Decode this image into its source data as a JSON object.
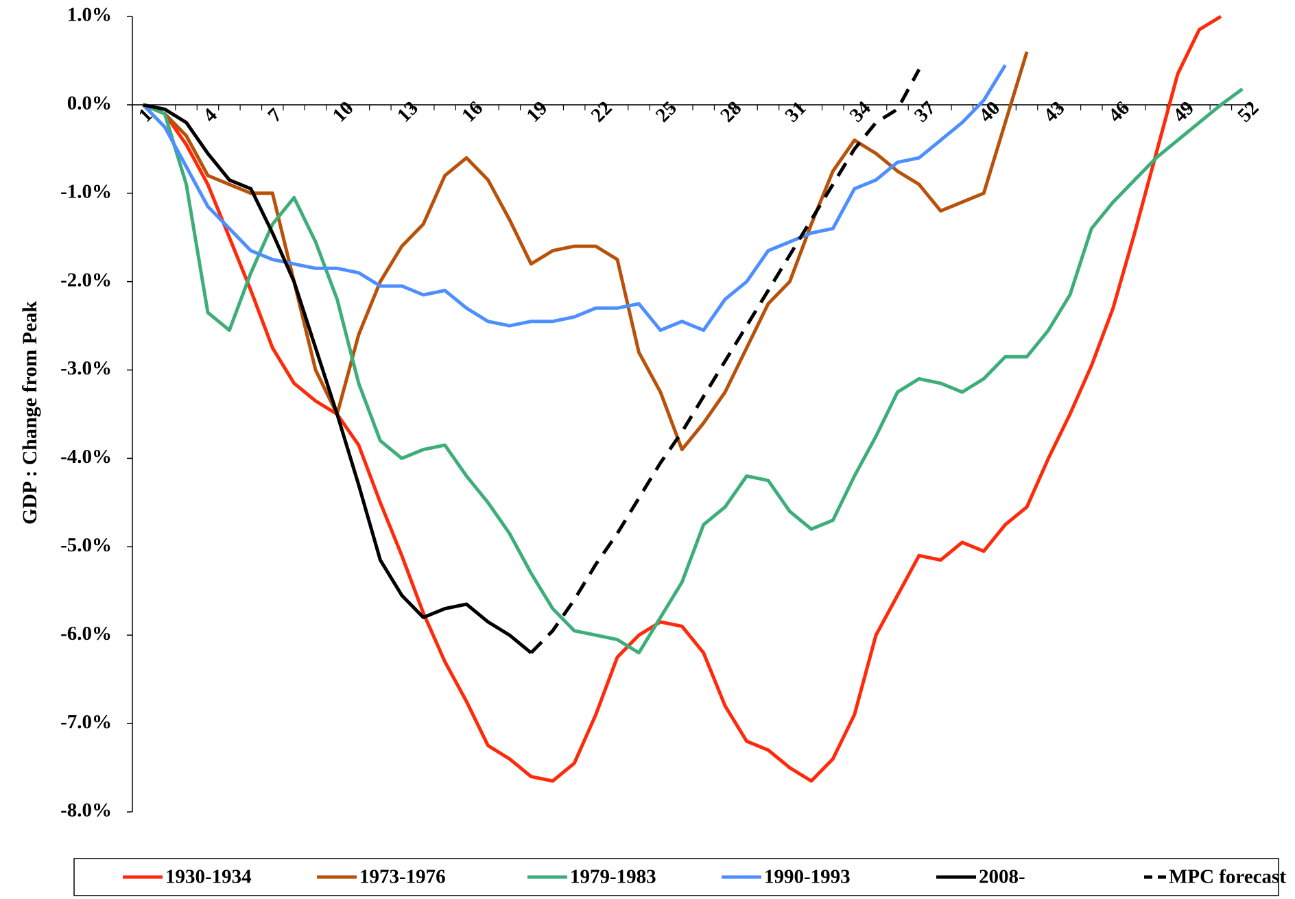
{
  "chart_data": {
    "type": "line",
    "y_label": "GDP : Change from Peak",
    "x": [
      1,
      2,
      3,
      4,
      5,
      6,
      7,
      8,
      9,
      10,
      11,
      12,
      13,
      14,
      15,
      16,
      17,
      18,
      19,
      20,
      21,
      22,
      23,
      24,
      25,
      26,
      27,
      28,
      29,
      30,
      31,
      32,
      33,
      34,
      35,
      36,
      37,
      38,
      39,
      40,
      41,
      42,
      43,
      44,
      45,
      46,
      47,
      48,
      49,
      50,
      51,
      52
    ],
    "xlim": [
      0.5,
      52.5
    ],
    "xticks": [
      1,
      4,
      7,
      10,
      13,
      16,
      19,
      22,
      25,
      28,
      31,
      34,
      37,
      40,
      43,
      46,
      49,
      52
    ],
    "ylim": [
      -8,
      1
    ],
    "yticks": [
      {
        "value": -8,
        "label": "-8.0%"
      },
      {
        "value": -7,
        "label": "-7.0%"
      },
      {
        "value": -6,
        "label": "-6.0%"
      },
      {
        "value": -5,
        "label": "-5.0%"
      },
      {
        "value": -4,
        "label": "-4.0%"
      },
      {
        "value": -3,
        "label": "-3.0%"
      },
      {
        "value": -2,
        "label": "-2.0%"
      },
      {
        "value": -1,
        "label": "-1.0%"
      },
      {
        "value": 0,
        "label": "0.0%"
      },
      {
        "value": 1,
        "label": "1.0%"
      }
    ],
    "legend": "bottom",
    "series": [
      {
        "name": "1930-1934",
        "color": "#ff2a0a",
        "values": [
          0,
          -0.1,
          -0.45,
          -0.9,
          -1.5,
          -2.1,
          -2.75,
          -3.15,
          -3.35,
          -3.5,
          -3.85,
          -4.5,
          -5.1,
          -5.75,
          -6.3,
          -6.75,
          -7.25,
          -7.4,
          -7.6,
          -7.65,
          -7.45,
          -6.9,
          -6.25,
          -6.0,
          -5.85,
          -5.9,
          -6.2,
          -6.8,
          -7.2,
          -7.3,
          -7.5,
          -7.65,
          -7.4,
          -6.9,
          -6.0,
          -5.55,
          -5.1,
          -5.15,
          -4.95,
          -5.05,
          -4.75,
          -4.55,
          -4.0,
          -3.5,
          -2.95,
          -2.3,
          -1.45,
          -0.55,
          0.35,
          0.85,
          1.0,
          null
        ]
      },
      {
        "name": "1973-1976",
        "color": "#b8520a",
        "values": [
          0,
          -0.1,
          -0.35,
          -0.8,
          -0.9,
          -1.0,
          -1.0,
          -2.0,
          -3.0,
          -3.5,
          -2.6,
          -2.0,
          -1.6,
          -1.35,
          -0.8,
          -0.6,
          -0.85,
          -1.3,
          -1.8,
          -1.65,
          -1.6,
          -1.6,
          -1.75,
          -2.8,
          -3.25,
          -3.9,
          -3.6,
          -3.25,
          -2.75,
          -2.25,
          -2.0,
          -1.35,
          -0.75,
          -0.4,
          -0.55,
          -0.75,
          -0.9,
          -1.2,
          -1.1,
          -1.0,
          -0.2,
          0.6,
          null,
          null,
          null,
          null,
          null,
          null,
          null,
          null,
          null,
          null
        ]
      },
      {
        "name": "1979-1983",
        "color": "#3dae7a",
        "values": [
          0,
          -0.1,
          -0.9,
          -2.35,
          -2.55,
          -1.9,
          -1.35,
          -1.05,
          -1.55,
          -2.2,
          -3.15,
          -3.8,
          -4.0,
          -3.9,
          -3.85,
          -4.2,
          -4.5,
          -4.85,
          -5.3,
          -5.7,
          -5.95,
          -6.0,
          -6.05,
          -6.2,
          -5.8,
          -5.4,
          -4.75,
          -4.55,
          -4.2,
          -4.25,
          -4.6,
          -4.8,
          -4.7,
          -4.2,
          -3.75,
          -3.25,
          -3.1,
          -3.15,
          -3.25,
          -3.1,
          -2.85,
          -2.85,
          -2.55,
          -2.15,
          -1.4,
          -1.1,
          -0.85,
          -0.6,
          -0.4,
          -0.2,
          0.0,
          0.18
        ]
      },
      {
        "name": "1990-1993",
        "color": "#4d8fff",
        "values": [
          0,
          -0.25,
          -0.7,
          -1.15,
          -1.4,
          -1.65,
          -1.75,
          -1.8,
          -1.85,
          -1.85,
          -1.9,
          -2.05,
          -2.05,
          -2.15,
          -2.1,
          -2.3,
          -2.45,
          -2.5,
          -2.45,
          -2.45,
          -2.4,
          -2.3,
          -2.3,
          -2.25,
          -2.55,
          -2.45,
          -2.55,
          -2.2,
          -2.0,
          -1.65,
          -1.55,
          -1.45,
          -1.4,
          -0.95,
          -0.85,
          -0.65,
          -0.6,
          -0.4,
          -0.2,
          0.05,
          0.45,
          null,
          null,
          null,
          null,
          null,
          null,
          null,
          null,
          null,
          null,
          null
        ]
      },
      {
        "name": "2008-",
        "color": "#000000",
        "values": [
          0,
          -0.05,
          -0.2,
          -0.55,
          -0.85,
          -0.95,
          -1.45,
          -2.0,
          -2.75,
          -3.5,
          -4.3,
          -5.15,
          -5.55,
          -5.8,
          -5.7,
          -5.65,
          -5.85,
          -6.0,
          -6.2,
          null,
          null,
          null,
          null,
          null,
          null,
          null,
          null,
          null,
          null,
          null,
          null,
          null,
          null,
          null,
          null,
          null,
          null,
          null,
          null,
          null,
          null,
          null,
          null,
          null,
          null,
          null,
          null,
          null,
          null,
          null,
          null,
          null
        ]
      },
      {
        "name": "MPC forecast",
        "color": "#000000",
        "style": "dashed",
        "values": [
          null,
          null,
          null,
          null,
          null,
          null,
          null,
          null,
          null,
          null,
          null,
          null,
          null,
          null,
          null,
          null,
          null,
          null,
          -6.2,
          -5.95,
          -5.6,
          -5.2,
          -4.85,
          -4.45,
          -4.05,
          -3.7,
          -3.3,
          -2.9,
          -2.5,
          -2.1,
          -1.7,
          -1.3,
          -0.9,
          -0.5,
          -0.2,
          -0.05,
          0.4,
          null,
          null,
          null,
          null,
          null,
          null,
          null,
          null,
          null,
          null,
          null,
          null,
          null,
          null,
          null
        ]
      }
    ]
  }
}
